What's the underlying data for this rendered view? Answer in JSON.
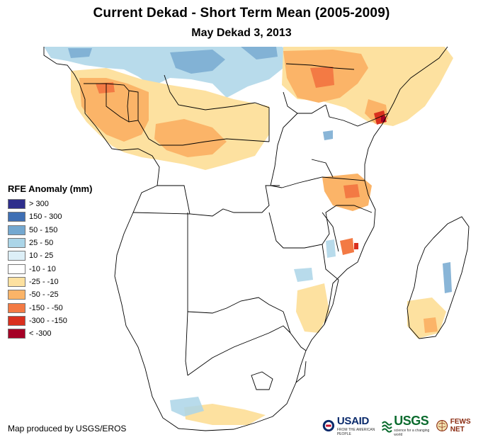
{
  "header": {
    "title": "Current Dekad - Short Term Mean (2005-2009)",
    "subtitle": "May Dekad 3, 2013"
  },
  "legend": {
    "title": "RFE Anomaly (mm)",
    "items": [
      {
        "label": "> 300",
        "color": "#2e2e8c"
      },
      {
        "label": "150 - 300",
        "color": "#3f6fb4"
      },
      {
        "label": "50 - 150",
        "color": "#74a8d0"
      },
      {
        "label": "25 - 50",
        "color": "#abd5e8"
      },
      {
        "label": "10 - 25",
        "color": "#ddeff7"
      },
      {
        "label": "-10 - 10",
        "color": "#ffffff"
      },
      {
        "label": "-25 - -10",
        "color": "#fde1a0"
      },
      {
        "label": "-50 - -25",
        "color": "#fbb468"
      },
      {
        "label": "-150 - -50",
        "color": "#f37a44"
      },
      {
        "label": "-300 - -150",
        "color": "#d9301e"
      },
      {
        "label": "< -300",
        "color": "#a50026"
      }
    ]
  },
  "footer": {
    "credit": "Map produced by USGS/EROS",
    "logos": {
      "usaid": "USAID",
      "usaid_tagline": "FROM THE AMERICAN PEOPLE",
      "usgs": "USGS",
      "usgs_tagline": "science for a changing world",
      "fews": "FEWS NET"
    }
  },
  "icons": [
    "usaid-seal-icon",
    "usgs-wave-icon",
    "fewsnet-globe-icon"
  ]
}
